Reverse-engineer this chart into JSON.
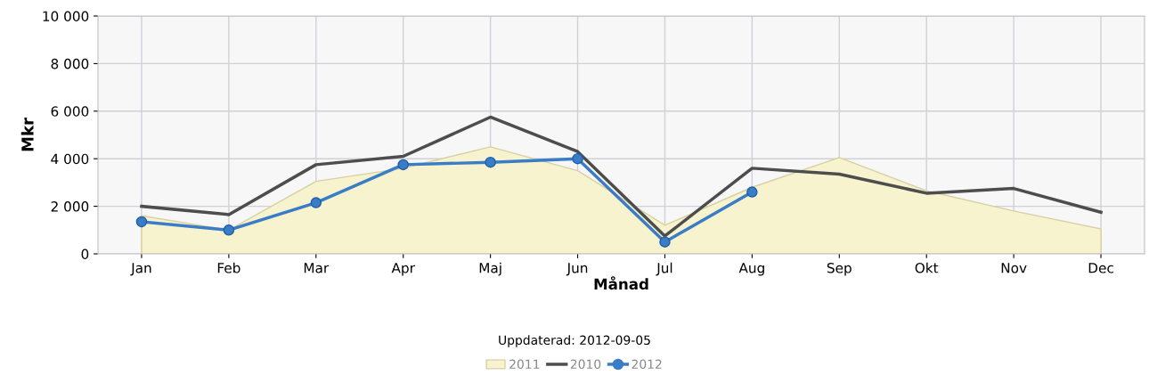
{
  "chart_data": {
    "type": "line",
    "xlabel": "Månad",
    "ylabel": "Mkr",
    "categories": [
      "Jan",
      "Feb",
      "Mar",
      "Apr",
      "Maj",
      "Jun",
      "Jul",
      "Aug",
      "Sep",
      "Okt",
      "Nov",
      "Dec"
    ],
    "series": [
      {
        "name": "2011",
        "type": "area",
        "color": "#f7f3cf",
        "values": [
          1600,
          1000,
          3050,
          3600,
          4500,
          3500,
          1200,
          2800,
          4050,
          2650,
          1800,
          1050
        ]
      },
      {
        "name": "2010",
        "color": "#4d4d4d",
        "marker": "none",
        "values": [
          2000,
          1650,
          3750,
          4100,
          5750,
          4300,
          750,
          3600,
          3350,
          2550,
          2750,
          1750
        ]
      },
      {
        "name": "2012",
        "color": "#3a7cc6",
        "marker": "circle",
        "values": [
          1350,
          1000,
          2150,
          3750,
          3850,
          4000,
          500,
          2600,
          null,
          null,
          null,
          null
        ]
      }
    ],
    "ylim": [
      0,
      10000
    ],
    "yticks": [
      0,
      {
        "value": 2000,
        "label": "2 000"
      },
      {
        "value": 4000,
        "label": "4 000"
      },
      {
        "value": 6000,
        "label": "6 000"
      },
      {
        "value": 8000,
        "label": "8 000"
      },
      {
        "value": 10000,
        "label": "10 000"
      }
    ],
    "grid": true,
    "legend": "bottom",
    "annotations": [
      "Uppdaterad: 2012-09-05"
    ]
  }
}
